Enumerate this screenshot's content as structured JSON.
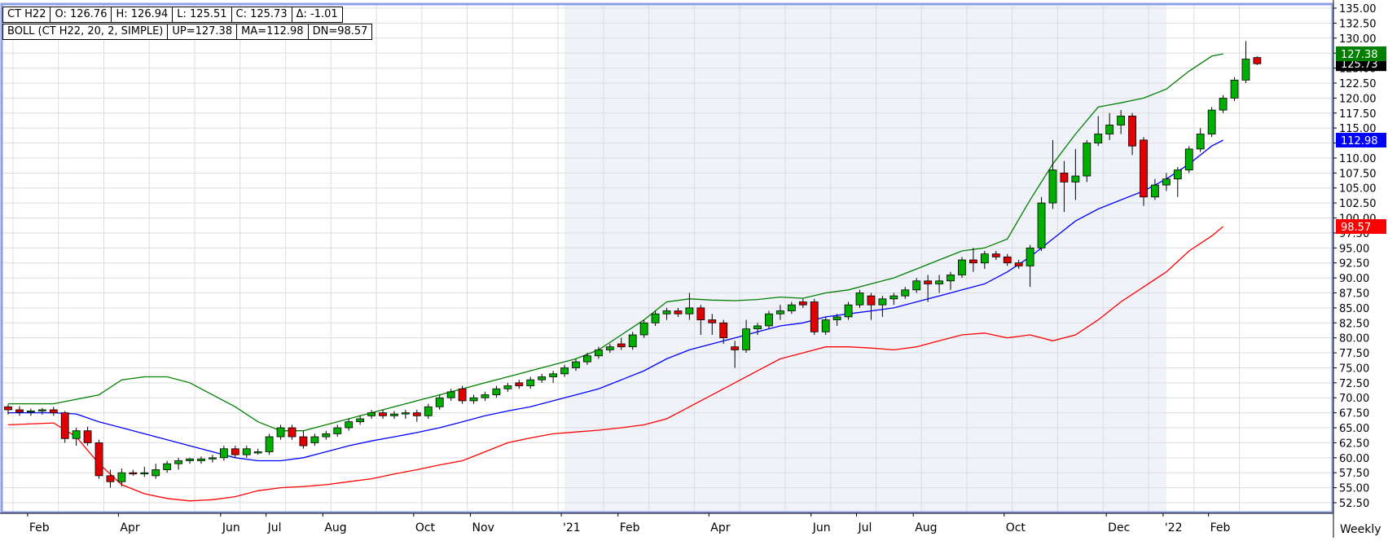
{
  "legend": {
    "symbol": "CT H22",
    "open": "O: 126.76",
    "high": "H: 126.94",
    "low": "L: 125.51",
    "close": "C: 125.73",
    "change": "Δ: -1.01",
    "boll": "BOLL (CT H22, 20, 2, SIMPLE)",
    "up": "UP=127.38",
    "ma": "MA=112.98",
    "dn": "DN=98.57"
  },
  "period_label": "Weekly",
  "colors": {
    "up_candle": "#00b000",
    "down_candle": "#e00000",
    "upper_band": "#008000",
    "middle_band": "#0000ff",
    "lower_band": "#ff0000",
    "frame": "#8c9ee6",
    "grid": "#dcdcdc",
    "shaded_region": "#f0f2fa"
  },
  "chart_data": {
    "type": "candlestick",
    "symbol": "CT H22",
    "period": "Weekly",
    "y_axis": {
      "min": 52.5,
      "max": 135.0,
      "step": 2.5,
      "position": "right",
      "tick_labels": [
        "52.50",
        "55.00",
        "57.50",
        "60.00",
        "62.50",
        "65.00",
        "67.50",
        "70.00",
        "72.50",
        "75.00",
        "77.50",
        "80.00",
        "82.50",
        "85.00",
        "87.50",
        "90.00",
        "92.50",
        "95.00",
        "97.50",
        "100.00",
        "102.50",
        "105.00",
        "107.50",
        "110.00",
        "112.50",
        "115.00",
        "117.50",
        "120.00",
        "122.50",
        "125.00",
        "127.50",
        "130.00",
        "132.50",
        "135.00"
      ]
    },
    "x_axis_labels": [
      {
        "label": "Feb",
        "week": 2
      },
      {
        "label": "Apr",
        "week": 10
      },
      {
        "label": "Jun",
        "week": 19
      },
      {
        "label": "Jul",
        "week": 23
      },
      {
        "label": "Aug",
        "week": 28
      },
      {
        "label": "Oct",
        "week": 36
      },
      {
        "label": "Nov",
        "week": 41
      },
      {
        "label": "'21",
        "week": 49
      },
      {
        "label": "Feb",
        "week": 54
      },
      {
        "label": "Apr",
        "week": 62
      },
      {
        "label": "Jun",
        "week": 71
      },
      {
        "label": "Jul",
        "week": 75
      },
      {
        "label": "Aug",
        "week": 80
      },
      {
        "label": "Oct",
        "week": 88
      },
      {
        "label": "Dec",
        "week": 97
      },
      {
        "label": "'22",
        "week": 102
      },
      {
        "label": "Feb",
        "week": 106
      }
    ],
    "shaded_weeks": [
      49,
      102
    ],
    "last_values": [
      {
        "name": "UP",
        "value": 127.38,
        "label": "127.38",
        "color": "#008000"
      },
      {
        "name": "MA",
        "value": 112.98,
        "label": "112.98",
        "color": "#0000ff"
      },
      {
        "name": "DN",
        "value": 98.57,
        "label": "98.57",
        "color": "#ff0000"
      },
      {
        "name": "Close",
        "value": 125.73,
        "label": "125.73",
        "color": "#000000"
      }
    ],
    "candles": [
      [
        68.5,
        68.9,
        67.2,
        68.0
      ],
      [
        68.0,
        68.6,
        67.0,
        67.6
      ],
      [
        67.6,
        68.2,
        67.0,
        67.8
      ],
      [
        67.8,
        68.3,
        67.2,
        68.0
      ],
      [
        68.0,
        68.5,
        67.0,
        67.5
      ],
      [
        67.5,
        67.8,
        62.5,
        63.2
      ],
      [
        63.2,
        65.0,
        62.0,
        64.5
      ],
      [
        64.5,
        65.2,
        62.0,
        62.5
      ],
      [
        62.5,
        63.0,
        56.5,
        57.0
      ],
      [
        57.0,
        58.0,
        55.0,
        56.0
      ],
      [
        56.0,
        58.2,
        55.2,
        57.5
      ],
      [
        57.5,
        58.0,
        57.0,
        57.3
      ],
      [
        57.3,
        58.5,
        56.8,
        57.5
      ],
      [
        57.0,
        59.0,
        56.5,
        58.0
      ],
      [
        58.0,
        59.5,
        57.5,
        59.0
      ],
      [
        59.0,
        60.0,
        58.0,
        59.5
      ],
      [
        59.5,
        60.0,
        59.0,
        59.8
      ],
      [
        59.5,
        60.2,
        59.0,
        59.8
      ],
      [
        59.8,
        60.5,
        59.2,
        60.0
      ],
      [
        60.0,
        62.0,
        59.5,
        61.5
      ],
      [
        61.5,
        62.0,
        60.0,
        60.5
      ],
      [
        60.5,
        62.0,
        60.0,
        61.5
      ],
      [
        61.0,
        61.5,
        60.5,
        61.0
      ],
      [
        61.0,
        64.0,
        60.5,
        63.5
      ],
      [
        63.5,
        65.5,
        63.0,
        65.0
      ],
      [
        65.0,
        65.5,
        63.0,
        63.5
      ],
      [
        63.5,
        64.5,
        61.5,
        62.0
      ],
      [
        62.5,
        64.0,
        62.0,
        63.5
      ],
      [
        63.5,
        64.5,
        63.0,
        64.0
      ],
      [
        64.0,
        65.5,
        63.5,
        65.0
      ],
      [
        65.0,
        66.5,
        64.5,
        66.0
      ],
      [
        66.0,
        67.0,
        65.5,
        66.5
      ],
      [
        67.0,
        68.0,
        66.5,
        67.5
      ],
      [
        67.5,
        68.0,
        66.5,
        67.0
      ],
      [
        67.0,
        67.8,
        66.5,
        67.3
      ],
      [
        67.3,
        68.0,
        66.5,
        67.5
      ],
      [
        67.5,
        68.0,
        66.0,
        67.0
      ],
      [
        67.0,
        69.0,
        66.5,
        68.5
      ],
      [
        68.5,
        70.5,
        68.0,
        70.0
      ],
      [
        70.0,
        71.5,
        69.5,
        71.0
      ],
      [
        71.5,
        72.0,
        69.0,
        69.5
      ],
      [
        69.5,
        70.5,
        69.0,
        70.0
      ],
      [
        70.0,
        71.0,
        69.5,
        70.5
      ],
      [
        70.5,
        72.0,
        70.0,
        71.5
      ],
      [
        71.5,
        72.5,
        71.0,
        72.0
      ],
      [
        72.5,
        73.0,
        71.5,
        72.0
      ],
      [
        72.0,
        73.5,
        71.5,
        73.0
      ],
      [
        73.0,
        74.0,
        72.5,
        73.5
      ],
      [
        73.5,
        74.5,
        72.5,
        74.0
      ],
      [
        74.0,
        75.5,
        73.5,
        75.0
      ],
      [
        75.0,
        76.5,
        74.5,
        76.0
      ],
      [
        76.0,
        77.5,
        75.5,
        77.0
      ],
      [
        77.0,
        78.5,
        76.5,
        78.0
      ],
      [
        78.0,
        79.0,
        77.5,
        78.5
      ],
      [
        79.0,
        80.0,
        78.0,
        78.5
      ],
      [
        78.5,
        81.0,
        78.0,
        80.5
      ],
      [
        80.5,
        83.0,
        80.0,
        82.5
      ],
      [
        82.5,
        84.5,
        82.0,
        84.0
      ],
      [
        84.0,
        85.0,
        83.0,
        84.5
      ],
      [
        84.5,
        85.0,
        83.5,
        84.0
      ],
      [
        84.0,
        87.5,
        83.0,
        85.0
      ],
      [
        85.0,
        85.5,
        80.5,
        83.0
      ],
      [
        83.0,
        84.0,
        80.5,
        82.5
      ],
      [
        82.5,
        83.0,
        79.0,
        80.0
      ],
      [
        78.5,
        79.5,
        75.0,
        78.0
      ],
      [
        78.0,
        83.0,
        77.5,
        81.5
      ],
      [
        81.5,
        82.5,
        80.5,
        82.0
      ],
      [
        82.0,
        84.5,
        81.5,
        84.0
      ],
      [
        84.0,
        85.5,
        83.0,
        84.5
      ],
      [
        84.5,
        86.0,
        84.0,
        85.5
      ],
      [
        86.0,
        86.5,
        85.0,
        85.5
      ],
      [
        86.0,
        86.5,
        80.5,
        81.0
      ],
      [
        81.0,
        83.5,
        80.5,
        83.0
      ],
      [
        83.0,
        84.0,
        82.0,
        83.5
      ],
      [
        83.5,
        86.0,
        83.0,
        85.5
      ],
      [
        85.5,
        88.0,
        85.0,
        87.5
      ],
      [
        87.0,
        87.5,
        83.0,
        85.5
      ],
      [
        85.5,
        87.0,
        83.5,
        86.5
      ],
      [
        86.5,
        87.5,
        85.5,
        87.0
      ],
      [
        87.0,
        88.5,
        86.5,
        88.0
      ],
      [
        88.0,
        90.0,
        87.5,
        89.5
      ],
      [
        89.5,
        90.5,
        86.0,
        89.0
      ],
      [
        89.0,
        90.5,
        87.5,
        89.5
      ],
      [
        89.5,
        91.0,
        88.0,
        90.5
      ],
      [
        90.5,
        93.5,
        90.0,
        93.0
      ],
      [
        93.0,
        95.0,
        91.0,
        92.5
      ],
      [
        92.5,
        94.5,
        91.5,
        94.0
      ],
      [
        94.0,
        94.5,
        93.0,
        93.5
      ],
      [
        93.5,
        94.0,
        92.0,
        92.5
      ],
      [
        92.5,
        93.0,
        91.5,
        92.0
      ],
      [
        92.0,
        95.5,
        88.5,
        95.0
      ],
      [
        95.0,
        103.5,
        94.5,
        102.5
      ],
      [
        102.5,
        113.0,
        101.5,
        108.0
      ],
      [
        107.5,
        109.5,
        101.0,
        106.0
      ],
      [
        106.0,
        111.5,
        103.0,
        107.0
      ],
      [
        107.0,
        113.0,
        106.0,
        112.5
      ],
      [
        112.5,
        117.0,
        112.0,
        114.0
      ],
      [
        114.0,
        117.5,
        113.0,
        115.5
      ],
      [
        115.5,
        118.0,
        114.0,
        117.0
      ],
      [
        117.0,
        117.5,
        110.5,
        112.0
      ],
      [
        113.0,
        113.5,
        102.0,
        103.5
      ],
      [
        103.5,
        106.5,
        103.0,
        105.5
      ],
      [
        105.5,
        107.5,
        104.5,
        106.5
      ],
      [
        106.5,
        108.5,
        103.5,
        108.0
      ],
      [
        108.0,
        112.0,
        107.5,
        111.5
      ],
      [
        111.5,
        115.0,
        111.0,
        114.0
      ],
      [
        114.0,
        118.5,
        113.5,
        118.0
      ],
      [
        118.0,
        120.5,
        117.5,
        120.0
      ],
      [
        120.0,
        123.5,
        119.5,
        123.0
      ],
      [
        123.0,
        129.5,
        122.5,
        126.5
      ],
      [
        126.76,
        126.94,
        125.51,
        125.73
      ]
    ],
    "upper_band": [
      [
        0,
        69.0
      ],
      [
        4,
        69.0
      ],
      [
        8,
        70.5
      ],
      [
        10,
        73.0
      ],
      [
        12,
        73.5
      ],
      [
        14,
        73.5
      ],
      [
        16,
        72.5
      ],
      [
        18,
        70.5
      ],
      [
        20,
        68.5
      ],
      [
        22,
        66.0
      ],
      [
        24,
        64.5
      ],
      [
        26,
        64.5
      ],
      [
        28,
        65.5
      ],
      [
        30,
        66.5
      ],
      [
        32,
        67.5
      ],
      [
        34,
        68.5
      ],
      [
        36,
        69.5
      ],
      [
        38,
        70.5
      ],
      [
        40,
        71.5
      ],
      [
        42,
        72.5
      ],
      [
        44,
        73.5
      ],
      [
        46,
        74.5
      ],
      [
        48,
        75.5
      ],
      [
        50,
        76.5
      ],
      [
        52,
        78.0
      ],
      [
        54,
        80.5
      ],
      [
        56,
        83.0
      ],
      [
        58,
        86.0
      ],
      [
        60,
        86.5
      ],
      [
        62,
        86.3
      ],
      [
        64,
        86.2
      ],
      [
        66,
        86.4
      ],
      [
        68,
        86.8
      ],
      [
        70,
        86.6
      ],
      [
        72,
        87.5
      ],
      [
        74,
        88.0
      ],
      [
        76,
        89.0
      ],
      [
        78,
        90.0
      ],
      [
        80,
        91.5
      ],
      [
        82,
        93.0
      ],
      [
        84,
        94.5
      ],
      [
        86,
        95.0
      ],
      [
        88,
        96.5
      ],
      [
        90,
        103.0
      ],
      [
        92,
        109.0
      ],
      [
        94,
        114.0
      ],
      [
        96,
        118.5
      ],
      [
        98,
        119.2
      ],
      [
        100,
        120.0
      ],
      [
        102,
        121.5
      ],
      [
        104,
        124.5
      ],
      [
        106,
        127.0
      ],
      [
        107,
        127.38
      ]
    ],
    "middle_band": [
      [
        0,
        67.5
      ],
      [
        4,
        67.5
      ],
      [
        6,
        67.3
      ],
      [
        8,
        66.0
      ],
      [
        10,
        65.0
      ],
      [
        12,
        64.0
      ],
      [
        14,
        63.0
      ],
      [
        16,
        62.0
      ],
      [
        18,
        61.0
      ],
      [
        20,
        60.0
      ],
      [
        22,
        59.5
      ],
      [
        24,
        59.5
      ],
      [
        26,
        60.0
      ],
      [
        28,
        61.0
      ],
      [
        30,
        62.0
      ],
      [
        32,
        62.8
      ],
      [
        34,
        63.5
      ],
      [
        36,
        64.2
      ],
      [
        38,
        65.0
      ],
      [
        40,
        66.0
      ],
      [
        42,
        67.0
      ],
      [
        44,
        67.8
      ],
      [
        46,
        68.5
      ],
      [
        48,
        69.5
      ],
      [
        50,
        70.5
      ],
      [
        52,
        71.5
      ],
      [
        54,
        73.0
      ],
      [
        56,
        74.5
      ],
      [
        58,
        76.5
      ],
      [
        60,
        78.0
      ],
      [
        62,
        79.0
      ],
      [
        64,
        80.0
      ],
      [
        66,
        81.0
      ],
      [
        68,
        82.0
      ],
      [
        70,
        82.5
      ],
      [
        72,
        83.5
      ],
      [
        74,
        84.0
      ],
      [
        76,
        84.5
      ],
      [
        78,
        85.0
      ],
      [
        80,
        86.0
      ],
      [
        82,
        87.0
      ],
      [
        84,
        88.0
      ],
      [
        86,
        89.0
      ],
      [
        88,
        91.0
      ],
      [
        90,
        93.5
      ],
      [
        92,
        96.5
      ],
      [
        94,
        99.5
      ],
      [
        96,
        101.5
      ],
      [
        98,
        103.0
      ],
      [
        100,
        104.5
      ],
      [
        102,
        106.5
      ],
      [
        104,
        109.0
      ],
      [
        106,
        112.0
      ],
      [
        107,
        112.98
      ]
    ],
    "lower_band": [
      [
        0,
        65.5
      ],
      [
        4,
        65.8
      ],
      [
        6,
        63.5
      ],
      [
        8,
        59.0
      ],
      [
        10,
        55.5
      ],
      [
        12,
        54.0
      ],
      [
        14,
        53.2
      ],
      [
        16,
        52.8
      ],
      [
        18,
        53.0
      ],
      [
        20,
        53.5
      ],
      [
        22,
        54.5
      ],
      [
        24,
        55.0
      ],
      [
        26,
        55.2
      ],
      [
        28,
        55.5
      ],
      [
        30,
        56.0
      ],
      [
        32,
        56.5
      ],
      [
        34,
        57.3
      ],
      [
        36,
        58.0
      ],
      [
        38,
        58.8
      ],
      [
        40,
        59.5
      ],
      [
        42,
        61.0
      ],
      [
        44,
        62.5
      ],
      [
        46,
        63.3
      ],
      [
        48,
        64.0
      ],
      [
        50,
        64.3
      ],
      [
        52,
        64.6
      ],
      [
        54,
        65.0
      ],
      [
        56,
        65.5
      ],
      [
        58,
        66.5
      ],
      [
        60,
        68.5
      ],
      [
        62,
        70.5
      ],
      [
        64,
        72.5
      ],
      [
        66,
        74.5
      ],
      [
        68,
        76.5
      ],
      [
        70,
        77.5
      ],
      [
        72,
        78.5
      ],
      [
        74,
        78.5
      ],
      [
        76,
        78.3
      ],
      [
        78,
        78.0
      ],
      [
        80,
        78.5
      ],
      [
        82,
        79.5
      ],
      [
        84,
        80.5
      ],
      [
        86,
        80.8
      ],
      [
        88,
        80.0
      ],
      [
        90,
        80.5
      ],
      [
        92,
        79.5
      ],
      [
        94,
        80.5
      ],
      [
        96,
        83.0
      ],
      [
        98,
        86.0
      ],
      [
        100,
        88.5
      ],
      [
        102,
        91.0
      ],
      [
        104,
        94.5
      ],
      [
        106,
        97.0
      ],
      [
        107,
        98.57
      ]
    ]
  }
}
